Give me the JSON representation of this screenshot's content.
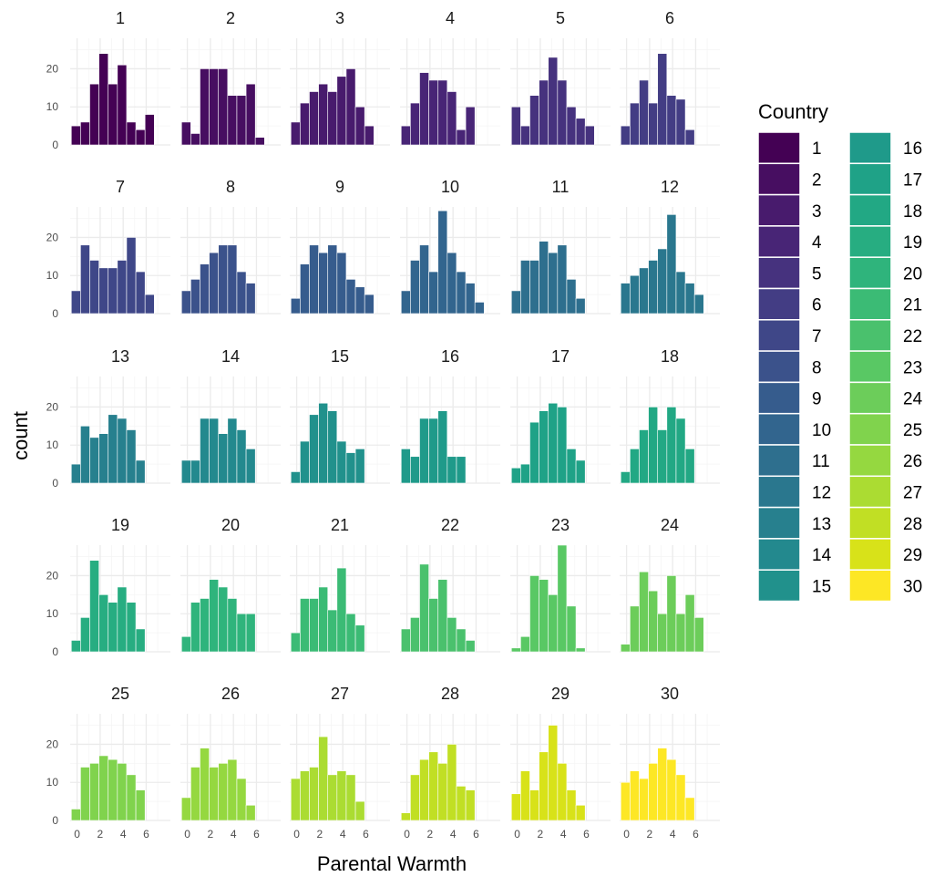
{
  "chart_data": {
    "type": "bar",
    "subtype": "faceted histogram",
    "xlabel": "Parental Warmth",
    "ylabel": "count",
    "xlim": [
      -0.6,
      8.1
    ],
    "ylim": [
      0,
      28
    ],
    "x_ticks": [
      0,
      2,
      4,
      6
    ],
    "y_ticks": [
      0,
      10,
      20
    ],
    "grid": true,
    "bins": {
      "first_left": -0.5,
      "width": 0.8,
      "count": 10
    },
    "legend": {
      "title": "Country",
      "placement": "right",
      "palette": "viridis"
    },
    "panels": [
      {
        "label": "1",
        "color": "#440154",
        "counts": [
          5,
          6,
          16,
          24,
          16,
          21,
          6,
          4,
          8,
          0
        ]
      },
      {
        "label": "2",
        "color": "#470E61",
        "counts": [
          6,
          3,
          20,
          20,
          20,
          13,
          13,
          16,
          2,
          0
        ]
      },
      {
        "label": "3",
        "color": "#481B6D",
        "counts": [
          6,
          11,
          14,
          16,
          14,
          18,
          20,
          10,
          5,
          0
        ]
      },
      {
        "label": "4",
        "color": "#482576",
        "counts": [
          5,
          11,
          19,
          17,
          17,
          14,
          4,
          10,
          0,
          0
        ]
      },
      {
        "label": "5",
        "color": "#46327E",
        "counts": [
          10,
          5,
          13,
          17,
          23,
          17,
          10,
          7,
          5,
          0
        ]
      },
      {
        "label": "6",
        "color": "#433D84",
        "counts": [
          5,
          11,
          17,
          11,
          24,
          13,
          12,
          4,
          0,
          0
        ]
      },
      {
        "label": "7",
        "color": "#3F4788",
        "counts": [
          6,
          18,
          14,
          12,
          12,
          14,
          20,
          11,
          5,
          0
        ]
      },
      {
        "label": "8",
        "color": "#3B528B",
        "counts": [
          6,
          9,
          13,
          16,
          18,
          18,
          11,
          8,
          0,
          0
        ]
      },
      {
        "label": "9",
        "color": "#365C8D",
        "counts": [
          4,
          13,
          18,
          16,
          18,
          16,
          9,
          7,
          5,
          0
        ]
      },
      {
        "label": "10",
        "color": "#32658E",
        "counts": [
          6,
          14,
          18,
          11,
          27,
          16,
          11,
          8,
          3,
          0
        ]
      },
      {
        "label": "11",
        "color": "#2E6F8E",
        "counts": [
          6,
          14,
          14,
          19,
          16,
          18,
          9,
          4,
          0,
          0
        ]
      },
      {
        "label": "12",
        "color": "#2A778E",
        "counts": [
          8,
          10,
          12,
          14,
          17,
          26,
          11,
          8,
          5,
          0
        ]
      },
      {
        "label": "13",
        "color": "#27808E",
        "counts": [
          5,
          15,
          12,
          13,
          18,
          17,
          14,
          6,
          0,
          0
        ]
      },
      {
        "label": "14",
        "color": "#23898E",
        "counts": [
          6,
          6,
          17,
          17,
          13,
          17,
          14,
          9,
          0,
          0
        ]
      },
      {
        "label": "15",
        "color": "#21918C",
        "counts": [
          3,
          11,
          18,
          21,
          19,
          11,
          8,
          9,
          0,
          0
        ]
      },
      {
        "label": "16",
        "color": "#1F9A8A",
        "counts": [
          9,
          7,
          17,
          17,
          19,
          7,
          7,
          0,
          0,
          0
        ]
      },
      {
        "label": "17",
        "color": "#1FA287",
        "counts": [
          4,
          5,
          16,
          19,
          21,
          20,
          9,
          6,
          0,
          0
        ]
      },
      {
        "label": "18",
        "color": "#22A884",
        "counts": [
          3,
          9,
          14,
          20,
          14,
          20,
          17,
          9,
          0,
          0
        ]
      },
      {
        "label": "19",
        "color": "#27AD81",
        "counts": [
          3,
          9,
          24,
          15,
          13,
          17,
          13,
          6,
          0,
          0
        ]
      },
      {
        "label": "20",
        "color": "#2FB47C",
        "counts": [
          4,
          13,
          14,
          19,
          17,
          14,
          10,
          10,
          0,
          0
        ]
      },
      {
        "label": "21",
        "color": "#3BBB75",
        "counts": [
          5,
          14,
          14,
          17,
          11,
          22,
          10,
          7,
          0,
          0
        ]
      },
      {
        "label": "22",
        "color": "#4AC16D",
        "counts": [
          6,
          9,
          23,
          14,
          19,
          9,
          6,
          3,
          0,
          0
        ]
      },
      {
        "label": "23",
        "color": "#59C864",
        "counts": [
          1,
          4,
          20,
          19,
          15,
          28,
          12,
          1,
          0,
          0
        ]
      },
      {
        "label": "24",
        "color": "#6CCD5A",
        "counts": [
          2,
          12,
          21,
          16,
          10,
          20,
          10,
          15,
          9,
          0
        ]
      },
      {
        "label": "25",
        "color": "#80D34D",
        "counts": [
          3,
          14,
          15,
          17,
          16,
          15,
          12,
          8,
          0,
          0
        ]
      },
      {
        "label": "26",
        "color": "#95D840",
        "counts": [
          6,
          14,
          19,
          14,
          15,
          16,
          11,
          4,
          0,
          0
        ]
      },
      {
        "label": "27",
        "color": "#ABDC32",
        "counts": [
          11,
          13,
          14,
          22,
          12,
          13,
          12,
          5,
          0,
          0
        ]
      },
      {
        "label": "28",
        "color": "#C1DF24",
        "counts": [
          2,
          12,
          16,
          18,
          15,
          20,
          9,
          8,
          0,
          0
        ]
      },
      {
        "label": "29",
        "color": "#D8E219",
        "counts": [
          7,
          13,
          8,
          18,
          25,
          15,
          8,
          4,
          0,
          0
        ]
      },
      {
        "label": "30",
        "color": "#FDE725",
        "counts": [
          10,
          13,
          11,
          15,
          19,
          16,
          12,
          6,
          0,
          0
        ]
      }
    ]
  }
}
